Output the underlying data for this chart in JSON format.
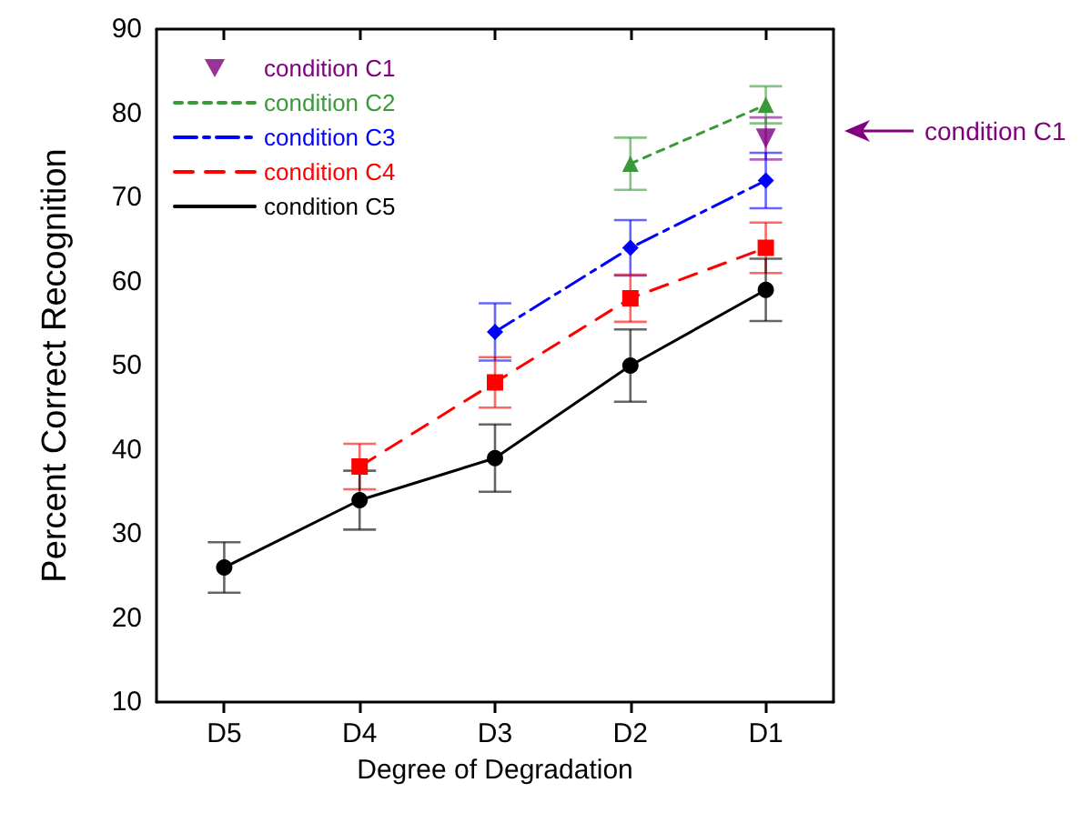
{
  "chart_data": {
    "type": "line",
    "xlabel": "Degree of Degradation",
    "ylabel": "Percent Correct Recognition",
    "categories": [
      "D5",
      "D4",
      "D3",
      "D2",
      "D1"
    ],
    "ylim": [
      10,
      90
    ],
    "yticks": [
      10,
      20,
      30,
      40,
      50,
      60,
      70,
      80,
      90
    ],
    "grid": false,
    "legend": "top left",
    "series": [
      {
        "name": "condition C1",
        "type": "scatter",
        "marker": "triangle-down",
        "color": "#800080",
        "values": [
          null,
          null,
          null,
          null,
          77
        ],
        "errors": [
          null,
          null,
          null,
          null,
          2.5
        ]
      },
      {
        "name": "condition C2",
        "marker": "triangle",
        "line_style": "dotted",
        "color": "#3a9a3a",
        "values": [
          null,
          null,
          null,
          74,
          81
        ],
        "errors": [
          null,
          null,
          null,
          3.1,
          2.2
        ]
      },
      {
        "name": "condition C3",
        "marker": "diamond",
        "line_style": "dashdot",
        "color": "#0000ff",
        "values": [
          null,
          null,
          54,
          64,
          72
        ],
        "errors": [
          null,
          null,
          3.4,
          3.3,
          3.3
        ]
      },
      {
        "name": "condition C4",
        "marker": "square",
        "line_style": "dashed",
        "color": "#ff0000",
        "values": [
          null,
          38,
          48,
          58,
          64
        ],
        "errors": [
          null,
          2.7,
          3,
          2.8,
          3
        ]
      },
      {
        "name": "condition C5",
        "marker": "circle",
        "line_style": "solid",
        "color": "#000000",
        "values": [
          26,
          34,
          39,
          50,
          59
        ],
        "errors": [
          3,
          3.5,
          4,
          4.3,
          3.7
        ]
      }
    ],
    "annotations": [
      "condition C1"
    ]
  }
}
